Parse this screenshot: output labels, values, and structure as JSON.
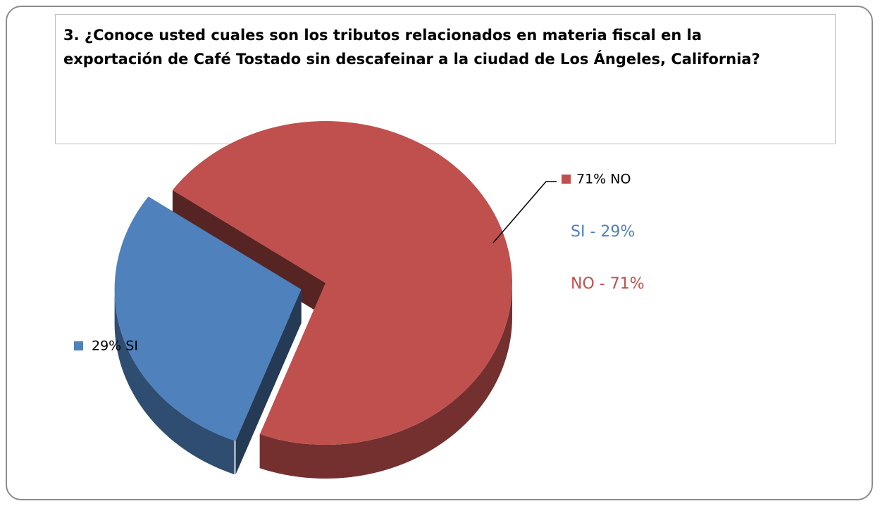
{
  "chart_data": {
    "type": "pie",
    "title": [
      "3. ¿Conoce usted cuales son los tributos relacionados en materia fiscal en la",
      "exportación de Café Tostado sin descafeinar a la ciudad de Los Ángeles, California?"
    ],
    "categories": [
      "SI",
      "NO"
    ],
    "values": [
      29,
      71
    ],
    "value_labels": [
      "29% SI",
      "71% NO"
    ],
    "colors": [
      "#4f81bd",
      "#c0504d"
    ],
    "annotations": [
      "SI - 29%",
      "NO - 71%"
    ]
  }
}
